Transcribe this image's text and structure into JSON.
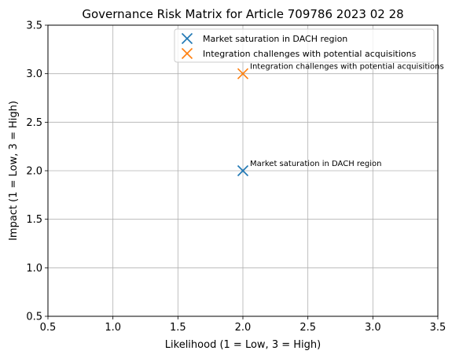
{
  "chart_data": {
    "type": "scatter",
    "title": "Governance Risk Matrix for Article 709786 2023 02 28",
    "xlabel": "Likelihood (1 = Low, 3 = High)",
    "ylabel": "Impact (1 = Low, 3 = High)",
    "xlim": [
      0.5,
      3.5
    ],
    "ylim": [
      0.5,
      3.5
    ],
    "xticks": [
      "0.5",
      "1.0",
      "1.5",
      "2.0",
      "2.5",
      "3.0",
      "3.5"
    ],
    "yticks": [
      "0.5",
      "1.0",
      "1.5",
      "2.0",
      "2.5",
      "3.0",
      "3.5"
    ],
    "grid": true,
    "legend_position": "top-right",
    "marker": "x",
    "series": [
      {
        "name": "Market saturation in DACH region",
        "color": "#1f77b4",
        "x": 2.0,
        "y": 2.0,
        "annotation": "Market saturation in DACH region"
      },
      {
        "name": "Integration challenges with potential acquisitions",
        "color": "#ff7f0e",
        "x": 2.0,
        "y": 3.0,
        "annotation": "Integration challenges with potential acquisitions"
      }
    ]
  }
}
